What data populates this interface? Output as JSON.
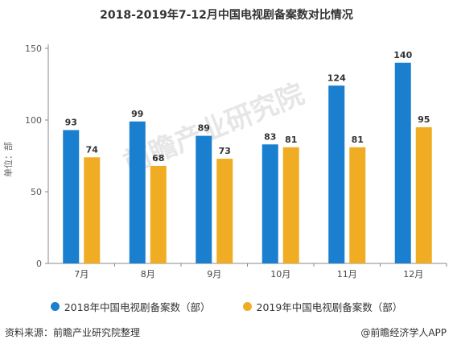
{
  "title": "2018-2019年7-12月中国电视剧备案数对比情况",
  "ylabel": "单位：部",
  "source": "资料来源：前瞻产业研究院整理",
  "brand": "@前瞻经济学人APP",
  "watermark": "前瞻产业研究院",
  "colors": {
    "s1": "#1a7fcf",
    "s2": "#f0ad23",
    "axis": "#888888"
  },
  "chart_data": {
    "type": "bar",
    "categories": [
      "7月",
      "8月",
      "9月",
      "10月",
      "11月",
      "12月"
    ],
    "series": [
      {
        "name": "2018年中国电视剧备案数（部）",
        "values": [
          93,
          99,
          89,
          83,
          124,
          140
        ]
      },
      {
        "name": "2019年中国电视剧备案数（部）",
        "values": [
          74,
          68,
          73,
          81,
          81,
          95
        ]
      }
    ],
    "ylim": [
      0,
      150
    ],
    "yticks": [
      0,
      50,
      100,
      150
    ],
    "ylabel": "单位：部",
    "grid": false,
    "legend": "bottom"
  }
}
